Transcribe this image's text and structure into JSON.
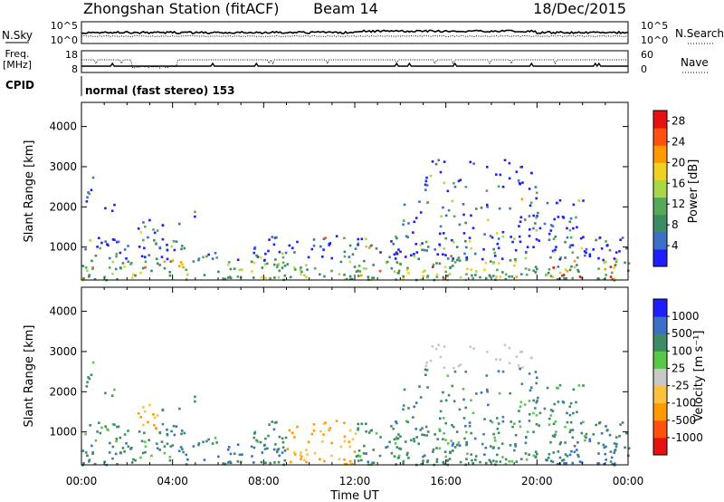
{
  "header": {
    "station": "Zhongshan Station (fitACF)",
    "beam": "Beam 14",
    "date": "18/Dec/2015"
  },
  "noise_panel": {
    "left_label": "N.Sky",
    "right_label": "N.Search",
    "left_ticks": [
      "10^5",
      "10^0"
    ],
    "right_ticks": [
      "10^5",
      "10^0"
    ]
  },
  "freq_panel": {
    "left_label_top": "Freq.",
    "left_label_unit": "[MHz]",
    "left_ticks": [
      "18",
      "8"
    ],
    "right_label": "Nave",
    "right_ticks": [
      "60",
      "0"
    ]
  },
  "cpid": {
    "label": "CPID",
    "mode": "normal (fast stereo) 153"
  },
  "colors": {
    "power": [
      "#1e1eff",
      "#3b6fc8",
      "#3c8c64",
      "#58a85a",
      "#a8d848",
      "#f0d020",
      "#ff9a00",
      "#ff5010",
      "#e81010"
    ],
    "velocity": [
      "#e81010",
      "#ff5010",
      "#ff9a00",
      "#ffc040",
      "#c8c8c8",
      "#58c848",
      "#3c8c64",
      "#3b6fc8",
      "#1e1eff"
    ]
  },
  "chart_data": [
    {
      "type": "heatmap",
      "name_printed": "",
      "ylabel": "Slant Range [km]",
      "y_ticks": [
        1000,
        2000,
        3000,
        4000
      ],
      "ylim": [
        180,
        4600
      ],
      "xlim_hours": [
        0,
        24
      ],
      "colorbar": {
        "label": "Power [dB]",
        "ticks": [
          "4",
          "8",
          "12",
          "16",
          "20",
          "24",
          "28"
        ],
        "range": [
          0,
          30
        ]
      }
    },
    {
      "type": "heatmap",
      "name_printed": "",
      "ylabel": "Slant Range [km]",
      "y_ticks": [
        1000,
        2000,
        3000,
        4000
      ],
      "ylim": [
        180,
        4600
      ],
      "xlim_hours": [
        0,
        24
      ],
      "colorbar": {
        "label": "Velocity [m s⁻¹]",
        "ticks": [
          "1000",
          "500",
          "100",
          "25",
          "-25",
          "-100",
          "-500",
          "-1000"
        ]
      }
    }
  ],
  "xaxis": {
    "ticks": [
      "00:00",
      "04:00",
      "08:00",
      "12:00",
      "16:00",
      "20:00",
      "00:00"
    ],
    "label": "Time UT"
  }
}
